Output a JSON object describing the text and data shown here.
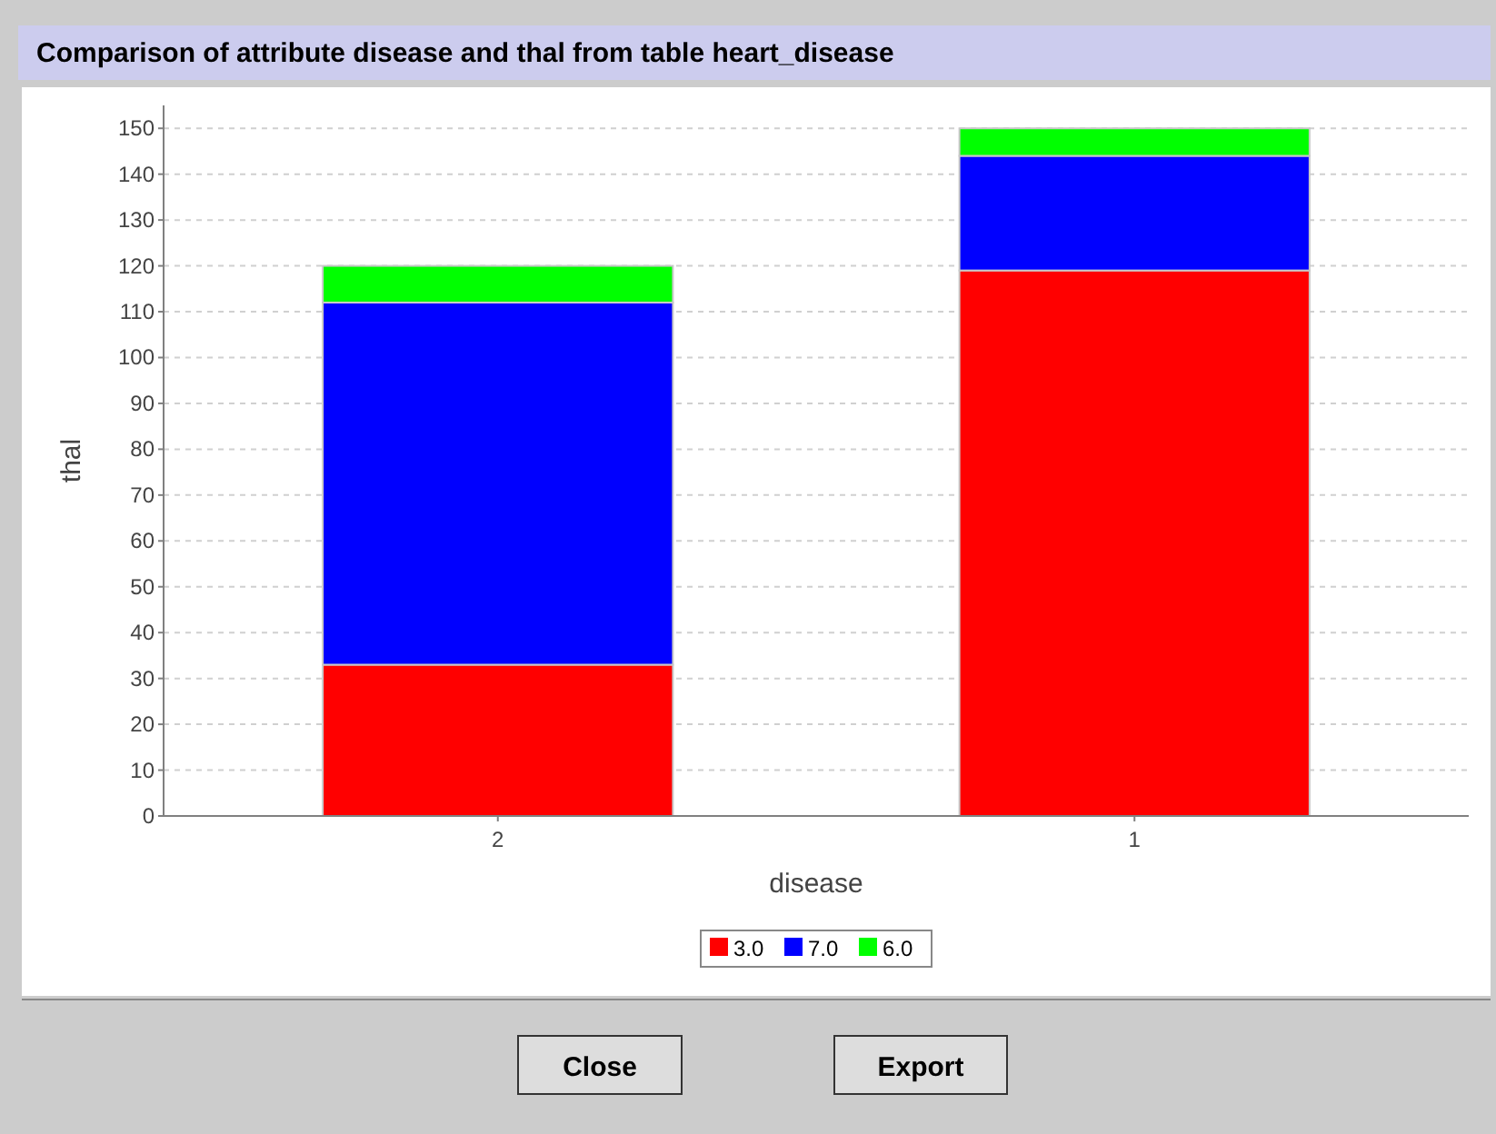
{
  "chart_data": {
    "type": "bar",
    "title": "Comparison of attribute disease and thal from table heart_disease",
    "xlabel": "disease",
    "ylabel": "thal",
    "categories": [
      "2",
      "1"
    ],
    "series": [
      {
        "name": "3.0",
        "color": "#ff0000",
        "values": [
          33,
          119
        ]
      },
      {
        "name": "7.0",
        "color": "#0000ff",
        "values": [
          79,
          25
        ]
      },
      {
        "name": "6.0",
        "color": "#00ff00",
        "values": [
          8,
          6
        ]
      }
    ],
    "stacked": true,
    "ylim": [
      0,
      155
    ],
    "yticks": [
      0,
      10,
      20,
      30,
      40,
      50,
      60,
      70,
      80,
      90,
      100,
      110,
      120,
      130,
      140,
      150
    ],
    "grid": "y",
    "legend": "bottom",
    "annotations": [
      "Close",
      "Export"
    ]
  }
}
